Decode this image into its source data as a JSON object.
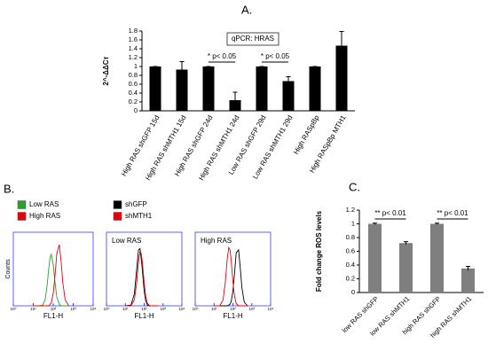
{
  "panel_labels": [
    "A.",
    "B.",
    "C."
  ],
  "chart_data": [
    {
      "type": "bar",
      "title": "qPCR: HRAS",
      "y_label": "2^-ΔΔCт",
      "categories": [
        "High RAS shGFP 15d",
        "High RAS shMTH1 15d",
        "High RAS shGFP 24d",
        "High RAS shMTH1 24d",
        "Low RAS shGFP 29d",
        "Low RAS shMTH1 29d",
        "High RASpBp",
        "High RASpBp MTH1"
      ],
      "values": [
        1,
        0.93,
        1,
        0.24,
        1,
        0.67,
        1,
        1.47
      ],
      "errors": [
        0,
        0.18,
        0,
        0.18,
        0,
        0.1,
        0,
        0.32
      ],
      "color": "#000000",
      "ylim": [
        0,
        1.8
      ],
      "yticks": [
        0,
        0.2,
        0.4,
        0.6,
        0.8,
        1,
        1.2,
        1.4,
        1.6,
        1.8
      ],
      "annotations": [
        "* p< 0.05",
        "* p< 0.05"
      ]
    },
    {
      "type": "line",
      "y_label": "Counts",
      "x_label": "FL1-H",
      "log_x": true,
      "xlim": [
        1,
        10000
      ],
      "xticks": [
        {
          "value": 1,
          "label": "10⁰"
        },
        {
          "value": 10,
          "label": "10¹"
        },
        {
          "value": 100,
          "label": "10²"
        },
        {
          "value": 1000,
          "label": "10³"
        },
        {
          "value": 10000,
          "label": "10⁴"
        }
      ],
      "ylim": [
        0,
        100
      ],
      "x": [
        10,
        20,
        30,
        40,
        50,
        60,
        70,
        80,
        100,
        120,
        150,
        200,
        250,
        300,
        400,
        600
      ],
      "series": [
        {
          "name": "Low RAS",
          "color": "#2ca02c",
          "values": [
            0,
            0,
            1,
            9,
            29,
            51,
            66,
            70,
            56,
            34,
            12,
            2,
            0,
            0,
            0,
            0
          ]
        },
        {
          "name": "High RAS",
          "color": "#e8000b",
          "values": [
            0,
            0,
            0,
            0,
            0,
            0,
            2,
            4,
            17,
            38,
            71,
            83,
            59,
            32,
            8,
            0
          ]
        }
      ]
    },
    {
      "type": "line",
      "title": "Low RAS",
      "x_label": "FL1-H",
      "log_x": true,
      "xlim": [
        1,
        10000
      ],
      "xticks": [
        {
          "value": 1,
          "label": "10⁰"
        },
        {
          "value": 10,
          "label": "10¹"
        },
        {
          "value": 100,
          "label": "10²"
        },
        {
          "value": 1000,
          "label": "10³"
        },
        {
          "value": 10000,
          "label": "10⁴"
        }
      ],
      "ylim": [
        0,
        100
      ],
      "x": [
        10,
        20,
        30,
        40,
        50,
        60,
        70,
        80,
        100,
        120,
        150,
        200,
        250,
        300,
        400,
        600
      ],
      "series": [
        {
          "name": "shGFP",
          "color": "#000000",
          "values": [
            0,
            1,
            16,
            49,
            76,
            78,
            64,
            49,
            20,
            7,
            1,
            0,
            0,
            0,
            0,
            0
          ]
        },
        {
          "name": "shMTH1",
          "color": "#e8000b",
          "values": [
            0,
            0,
            8,
            31,
            60,
            74,
            71,
            60,
            31,
            13,
            3,
            0,
            0,
            0,
            0,
            0
          ]
        }
      ]
    },
    {
      "type": "line",
      "title": "High RAS",
      "x_label": "FL1-H",
      "log_x": true,
      "xlim": [
        1,
        10000
      ],
      "xticks": [
        {
          "value": 1,
          "label": "10⁰"
        },
        {
          "value": 10,
          "label": "10¹"
        },
        {
          "value": 100,
          "label": "10²"
        },
        {
          "value": 1000,
          "label": "10³"
        },
        {
          "value": 10000,
          "label": "10⁴"
        }
      ],
      "ylim": [
        0,
        100
      ],
      "x": [
        10,
        20,
        30,
        40,
        50,
        60,
        70,
        80,
        100,
        120,
        150,
        200,
        250,
        300,
        400,
        600
      ],
      "series": [
        {
          "color": "#000000",
          "values": [
            0,
            0,
            0,
            0,
            0,
            1,
            2,
            5,
            20,
            42,
            72,
            76,
            49,
            25,
            5,
            0
          ]
        },
        {
          "color": "#e8000b",
          "values": [
            0,
            0,
            8,
            33,
            64,
            79,
            76,
            64,
            33,
            14,
            3,
            0,
            0,
            0,
            0,
            0
          ]
        }
      ]
    },
    {
      "type": "bar",
      "y_label": "Fold change ROS levels",
      "categories": [
        "low RAS shGFP",
        "low RAS shMTH1",
        "high RAS shGFP",
        "high RAS shMTH1"
      ],
      "values": [
        1,
        0.72,
        1,
        0.35
      ],
      "errors": [
        0.01,
        0.02,
        0.01,
        0.03
      ],
      "color": "#7f7f7f",
      "ylim": [
        0,
        1.2
      ],
      "yticks": [
        0,
        0.2,
        0.4,
        0.6,
        0.8,
        1,
        1.2
      ],
      "annotations": [
        "** p< 0.01",
        "** p< 0.01"
      ]
    }
  ]
}
